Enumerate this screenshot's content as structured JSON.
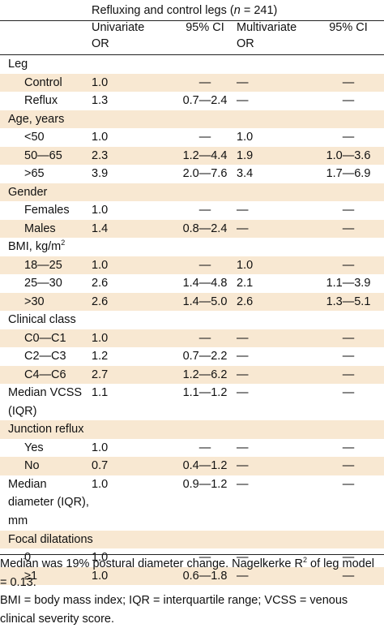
{
  "header": {
    "group_title_before": "Refluxing and control legs (",
    "group_title_n": "n",
    "group_title_after": " = 241)",
    "col_univariate_1": "Univariate",
    "col_univariate_2": "OR",
    "col_ci1": "95% CI",
    "col_multivariate_1": "Multivariate",
    "col_multivariate_2": "OR",
    "col_ci2": "95% CI"
  },
  "rows": [
    {
      "label": "Leg",
      "type": "group"
    },
    {
      "label": "Control",
      "type": "sub",
      "uor": "1.0",
      "uci": "—",
      "mor": "—",
      "mci": "—",
      "shade": true
    },
    {
      "label": "Reflux",
      "type": "sub",
      "uor": "1.3",
      "uci": "0.7—2.4",
      "mor": "—",
      "mci": "—"
    },
    {
      "label": "Age, years",
      "type": "group",
      "shade": true
    },
    {
      "label": "<50",
      "type": "sub",
      "uor": "1.0",
      "uci": "—",
      "mor": "1.0",
      "mci": "—"
    },
    {
      "label": "50—65",
      "type": "sub",
      "uor": "2.3",
      "uci": "1.2—4.4",
      "mor": "1.9",
      "mci": "1.0—3.6",
      "shade": true
    },
    {
      "label": ">65",
      "type": "sub",
      "uor": "3.9",
      "uci": "2.0—7.6",
      "mor": "3.4",
      "mci": "1.7—6.9"
    },
    {
      "label": "Gender",
      "type": "group",
      "shade": true
    },
    {
      "label": "Females",
      "type": "sub",
      "uor": "1.0",
      "uci": "—",
      "mor": "—",
      "mci": "—"
    },
    {
      "label": "Males",
      "type": "sub",
      "uor": "1.4",
      "uci": "0.8—2.4",
      "mor": "—",
      "mci": "—",
      "shade": true
    },
    {
      "label": "BMI, kg/m",
      "sup": "2",
      "type": "group"
    },
    {
      "label": "18—25",
      "type": "sub",
      "uor": "1.0",
      "uci": "—",
      "mor": "1.0",
      "mci": "—",
      "shade": true
    },
    {
      "label": "25—30",
      "type": "sub",
      "uor": "2.6",
      "uci": "1.4—4.8",
      "mor": "2.1",
      "mci": "1.1—3.9"
    },
    {
      "label": ">30",
      "type": "sub",
      "uor": "2.6",
      "uci": "1.4—5.0",
      "mor": "2.6",
      "mci": "1.3—5.1",
      "shade": true
    },
    {
      "label": "Clinical class",
      "type": "group"
    },
    {
      "label": "C0—C1",
      "type": "sub",
      "uor": "1.0",
      "uci": "—",
      "mor": "—",
      "mci": "—",
      "shade": true
    },
    {
      "label": "C2—C3",
      "type": "sub",
      "uor": "1.2",
      "uci": "0.7—2.2",
      "mor": "—",
      "mci": "—"
    },
    {
      "label": "C4—C6",
      "type": "sub",
      "uor": "2.7",
      "uci": "1.2—6.2",
      "mor": "—",
      "mci": "—",
      "shade": true
    },
    {
      "label": "Median VCSS (IQR)",
      "type": "multi2",
      "uor": "1.1",
      "uci": "1.1—1.2",
      "mor": "—",
      "mci": "—"
    },
    {
      "label": "Junction reflux",
      "type": "group",
      "shade": true
    },
    {
      "label": "Yes",
      "type": "sub",
      "uor": "1.0",
      "uci": "—",
      "mor": "—",
      "mci": "—"
    },
    {
      "label": "No",
      "type": "sub",
      "uor": "0.7",
      "uci": "0.4—1.2",
      "mor": "—",
      "mci": "—",
      "shade": true
    },
    {
      "label": "Median diameter (IQR), mm",
      "type": "multi3",
      "uor": "1.0",
      "uci": "0.9—1.2",
      "mor": "—",
      "mci": "—"
    },
    {
      "label": "Focal dilatations",
      "type": "group",
      "shade": true
    },
    {
      "label": "0",
      "type": "sub",
      "uor": "1.0",
      "uci": "—",
      "mor": "—",
      "mci": "—"
    },
    {
      "label": "≥1",
      "type": "sub",
      "uor": "1.0",
      "uci": "0.6—1.8",
      "mor": "—",
      "mci": "—",
      "shade": true
    }
  ],
  "footnotes": {
    "line1_before": "Median was 19% postural diameter change. Nagelkerke R",
    "line1_sup": "2",
    "line1_after": " of leg model = 0.13.",
    "line2": "BMI = body mass index; IQR = interquartile range; VCSS = venous clinical severity score."
  }
}
